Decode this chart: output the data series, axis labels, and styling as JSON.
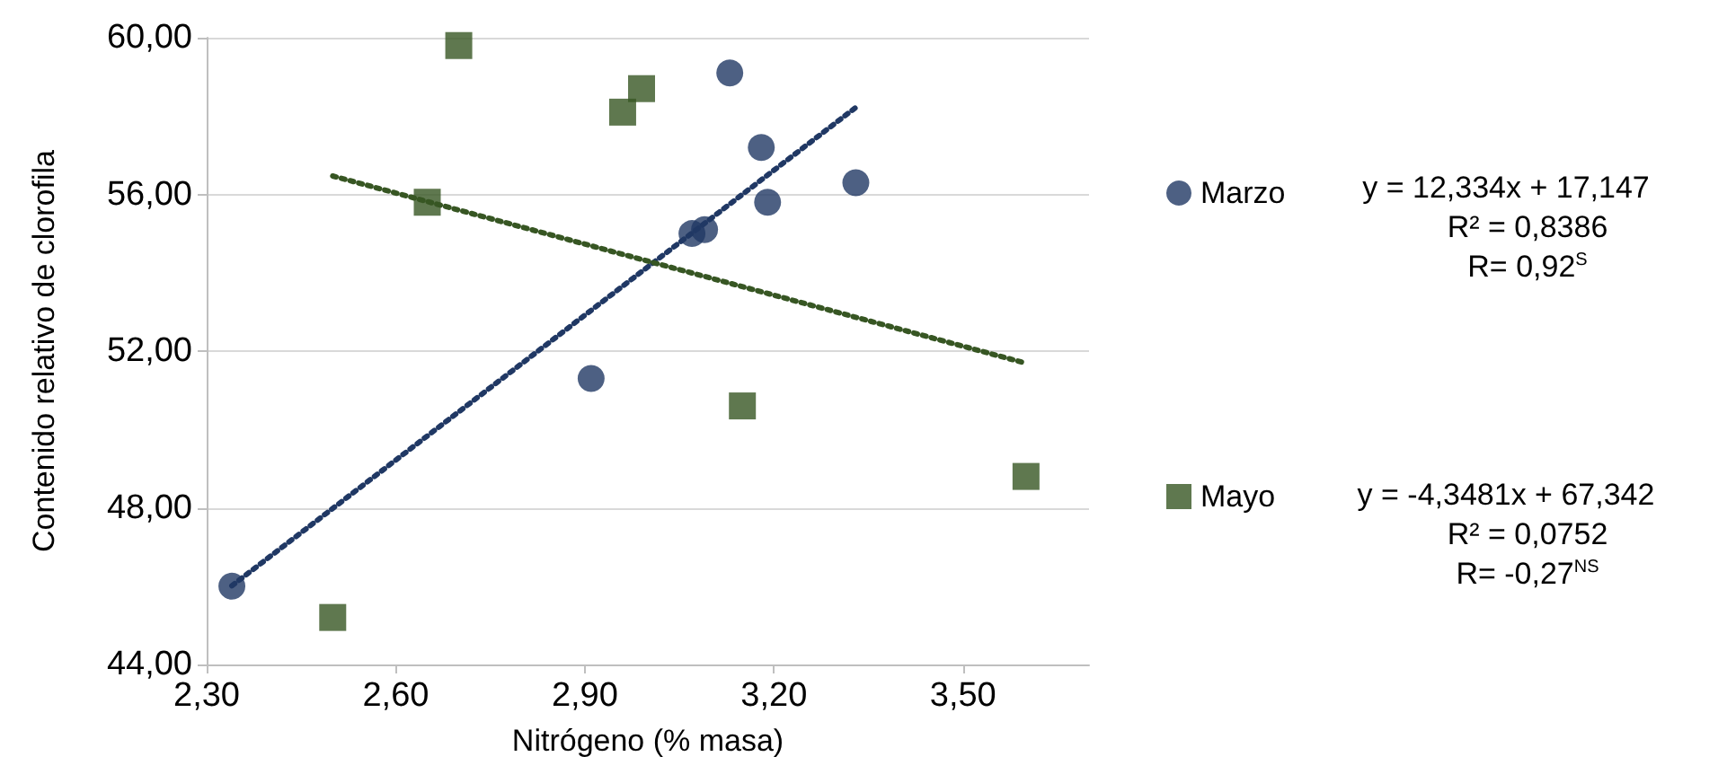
{
  "chart_data": {
    "type": "scatter",
    "xlabel": "Nitrógeno (% masa)",
    "ylabel": "Contenido relativo de clorofila",
    "xlim": [
      2.3,
      3.7
    ],
    "ylim": [
      44,
      60
    ],
    "xticks": [
      {
        "value": 2.3,
        "label": "2,30"
      },
      {
        "value": 2.6,
        "label": "2,60"
      },
      {
        "value": 2.9,
        "label": "2,90"
      },
      {
        "value": 3.2,
        "label": "3,20"
      },
      {
        "value": 3.5,
        "label": "3,50"
      }
    ],
    "yticks": [
      {
        "value": 44,
        "label": "44,00"
      },
      {
        "value": 48,
        "label": "48,00"
      },
      {
        "value": 52,
        "label": "52,00"
      },
      {
        "value": 56,
        "label": "56,00"
      },
      {
        "value": 60,
        "label": "60,00"
      }
    ],
    "grid": "y",
    "legend": "right",
    "series": [
      {
        "name": "Marzo",
        "color": "#203864",
        "marker": "circle",
        "x": [
          2.34,
          2.91,
          3.07,
          3.09,
          3.13,
          3.18,
          3.19,
          3.33
        ],
        "values": [
          46.0,
          51.3,
          55.0,
          55.1,
          59.1,
          57.2,
          55.8,
          56.3
        ]
      },
      {
        "name": "Mayo",
        "color": "#375623",
        "marker": "square",
        "x": [
          2.5,
          2.65,
          2.7,
          2.96,
          2.99,
          3.15,
          3.6
        ],
        "values": [
          45.2,
          55.8,
          59.8,
          58.1,
          58.7,
          50.6,
          48.8
        ]
      },
      {
        "type": "line",
        "color": "#203864",
        "marker": "none",
        "line_style": "dotted",
        "x": [
          2.34,
          3.33
        ],
        "values": [
          46.01,
          58.22
        ]
      },
      {
        "type": "line",
        "color": "#375623",
        "marker": "none",
        "line_style": "dotted",
        "x": [
          2.5,
          3.6
        ],
        "values": [
          56.47,
          51.69
        ]
      }
    ],
    "annotations": [
      "y = 12,334x + 17,147",
      "R² = 0,8386",
      "R= 0,92$^{S}$",
      "y = -4,3481x + 67,342",
      "R² = 0,0752",
      "R= -0,27$^{NS}$"
    ]
  }
}
